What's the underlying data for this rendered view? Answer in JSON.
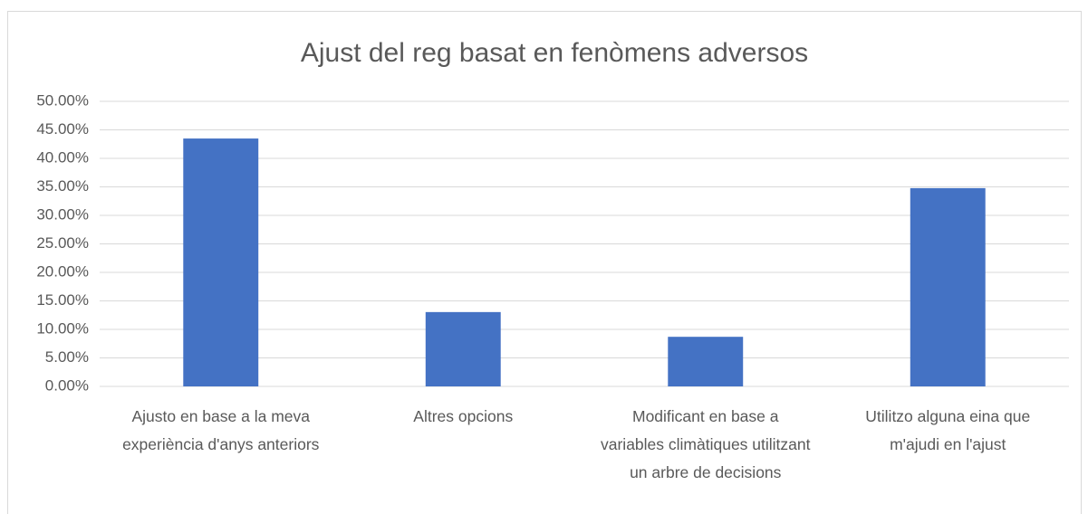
{
  "chart_data": {
    "type": "bar",
    "title": "Ajust del reg basat en fenòmens adversos",
    "categories": [
      "Ajusto en base a la meva experiència d'anys anteriors",
      "Altres opcions",
      "Modificant en base a variables climàtiques utilitzant un arbre de decisions",
      "Utilitzo alguna eina que m'ajudi en l'ajust"
    ],
    "values": [
      43.48,
      13.04,
      8.7,
      34.78
    ],
    "color": "#4472c4",
    "ylim": [
      0,
      50
    ],
    "yticks": [
      {
        "value": 0,
        "label": "0.00%"
      },
      {
        "value": 5,
        "label": "5.00%"
      },
      {
        "value": 10,
        "label": "10.00%"
      },
      {
        "value": 15,
        "label": "15.00%"
      },
      {
        "value": 20,
        "label": "20.00%"
      },
      {
        "value": 25,
        "label": "25.00%"
      },
      {
        "value": 30,
        "label": "30.00%"
      },
      {
        "value": 35,
        "label": "35.00%"
      },
      {
        "value": 40,
        "label": "40.00%"
      },
      {
        "value": 45,
        "label": "45.00%"
      },
      {
        "value": 50,
        "label": "50.00%"
      }
    ],
    "grid": true
  }
}
